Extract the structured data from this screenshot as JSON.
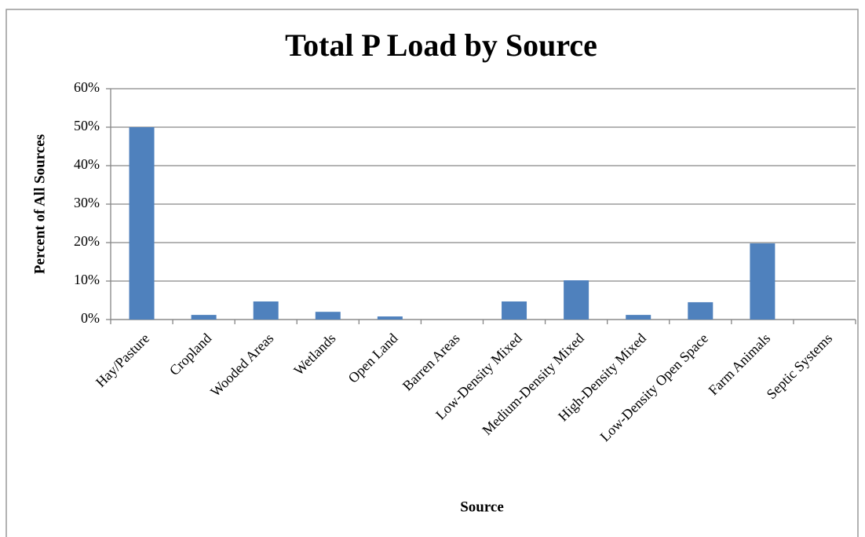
{
  "chart_data": {
    "type": "bar",
    "title": "Total P Load by Source",
    "x_label": "Source",
    "y_label": "Percent of All Sources",
    "categories": [
      "Hay/Pasture",
      "Cropland",
      "Wooded Areas",
      "Wetlands",
      "Open Land",
      "Barren Areas",
      "Low-Density Mixed",
      "Medium-Density Mixed",
      "High-Density Mixed",
      "Low-Density Open Space",
      "Farm Animals",
      "Septic Systems"
    ],
    "values": [
      50,
      1.2,
      4.7,
      2.0,
      0.8,
      0,
      4.7,
      10.2,
      1.2,
      4.5,
      19.8,
      0
    ],
    "color": "#4f81bd",
    "ylim": [
      0,
      60
    ],
    "yticks": [
      {
        "value": 0,
        "label": "0%"
      },
      {
        "value": 10,
        "label": "10%"
      },
      {
        "value": 20,
        "label": "20%"
      },
      {
        "value": 30,
        "label": "30%"
      },
      {
        "value": 40,
        "label": "40%"
      },
      {
        "value": 50,
        "label": "50%"
      },
      {
        "value": 60,
        "label": "60%"
      }
    ],
    "grid": true
  }
}
